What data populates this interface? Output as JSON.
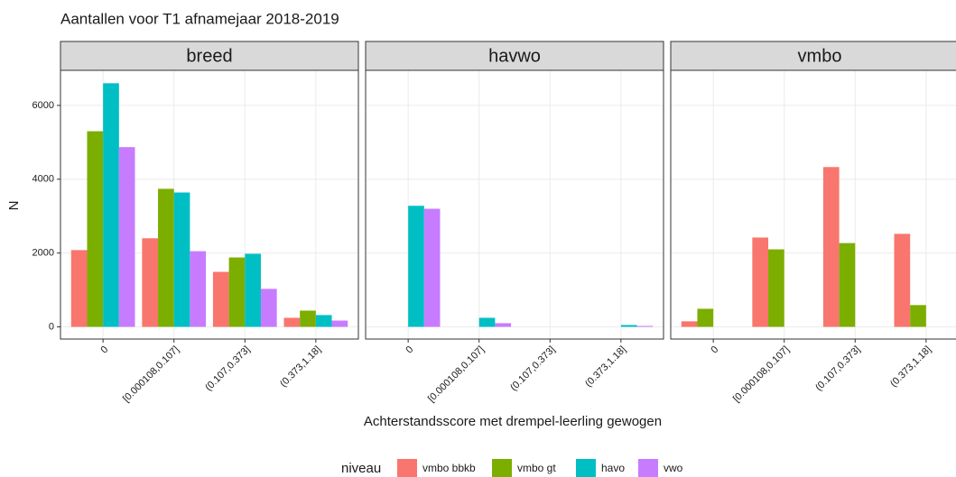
{
  "chart_data": {
    "type": "bar",
    "title": "Aantallen voor T1 afnamejaar 2018-2019",
    "x_label": "Achterstandsscore met drempel-leerling gewogen",
    "y_label": "N",
    "legend_title": "niveau",
    "legend": [
      {
        "name": "vmbo bbkb",
        "color": "#F8766D"
      },
      {
        "name": "vmbo gt",
        "color": "#7CAE00"
      },
      {
        "name": "havo",
        "color": "#00BFC4"
      },
      {
        "name": "vwo",
        "color": "#C77CFF"
      }
    ],
    "categories": [
      "0",
      "[0.000108,0.107]",
      "(0.107,0.373]",
      "(0.373,1.18]"
    ],
    "facets": [
      {
        "title": "breed",
        "series": [
          {
            "values": [
              2080,
              2400,
              1490,
              245
            ]
          },
          {
            "values": [
              5300,
              3740,
              1880,
              440
            ]
          },
          {
            "values": [
              6600,
              3640,
              1980,
              320
            ]
          },
          {
            "values": [
              4870,
              2050,
              1030,
              170
            ]
          }
        ]
      },
      {
        "title": "havwo",
        "series": [
          {
            "values": [
              null,
              null,
              null,
              null
            ]
          },
          {
            "values": [
              null,
              null,
              null,
              null
            ]
          },
          {
            "values": [
              3280,
              245,
              null,
              50
            ]
          },
          {
            "values": [
              3200,
              100,
              null,
              25
            ]
          }
        ]
      },
      {
        "title": "vmbo",
        "series": [
          {
            "values": [
              150,
              2420,
              4330,
              2520
            ]
          },
          {
            "values": [
              490,
              2100,
              2270,
              590
            ]
          },
          {
            "values": [
              null,
              null,
              null,
              null
            ]
          },
          {
            "values": [
              null,
              null,
              null,
              null
            ]
          }
        ]
      }
    ],
    "ylim": [
      -330,
      6950
    ],
    "yticks": [
      0,
      2000,
      4000,
      6000
    ],
    "grid": true
  }
}
